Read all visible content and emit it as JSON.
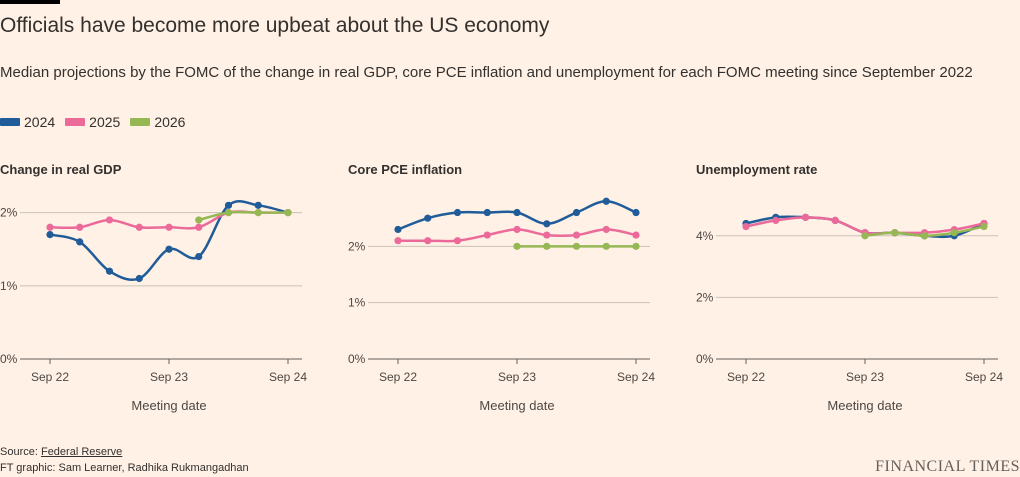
{
  "title": "Officials have become more upbeat about the US economy",
  "subtitle": "Median projections by the FOMC of the change in real GDP, core PCE inflation and unemployment for each FOMC meeting since September 2022",
  "legend": [
    {
      "label": "2024",
      "color": "#1f5c99"
    },
    {
      "label": "2025",
      "color": "#eb6a9a"
    },
    {
      "label": "2026",
      "color": "#96b854"
    }
  ],
  "footer": {
    "source_prefix": "Source: ",
    "source_link": "Federal Reserve",
    "credit": "FT graphic: Sam Learner, Radhika Rukmangadhan",
    "brand": "FINANCIAL TIMES"
  },
  "chart_data": [
    {
      "type": "line",
      "title": "Change in real GDP",
      "xlabel": "Meeting date",
      "x_ticks": [
        "Sep 22",
        "Sep 23",
        "Sep 24"
      ],
      "y_ticks": [
        "0%",
        "1%",
        "2%"
      ],
      "ylim": [
        0,
        2.2
      ],
      "x": [
        "2022-09",
        "2022-12",
        "2023-03",
        "2023-06",
        "2023-09",
        "2023-12",
        "2024-03",
        "2024-06",
        "2024-09"
      ],
      "series": [
        {
          "name": "2024",
          "color": "#1f5c99",
          "x": [
            "2022-09",
            "2022-12",
            "2023-03",
            "2023-06",
            "2023-09",
            "2023-12",
            "2024-03",
            "2024-06",
            "2024-09"
          ],
          "values": [
            1.7,
            1.6,
            1.2,
            1.1,
            1.5,
            1.4,
            2.1,
            2.1,
            2.0
          ]
        },
        {
          "name": "2025",
          "color": "#eb6a9a",
          "x": [
            "2022-09",
            "2022-12",
            "2023-03",
            "2023-06",
            "2023-09",
            "2023-12",
            "2024-03",
            "2024-06",
            "2024-09"
          ],
          "values": [
            1.8,
            1.8,
            1.9,
            1.8,
            1.8,
            1.8,
            2.0,
            2.0,
            2.0
          ]
        },
        {
          "name": "2026",
          "color": "#96b854",
          "x": [
            "2023-12",
            "2024-03",
            "2024-06",
            "2024-09"
          ],
          "values": [
            1.9,
            2.0,
            2.0,
            2.0
          ]
        }
      ]
    },
    {
      "type": "line",
      "title": "Core PCE inflation",
      "xlabel": "Meeting date",
      "x_ticks": [
        "Sep 22",
        "Sep 23",
        "Sep 24"
      ],
      "y_ticks": [
        "0%",
        "1%",
        "2%"
      ],
      "ylim": [
        0,
        3.0
      ],
      "x": [
        "2022-09",
        "2022-12",
        "2023-03",
        "2023-06",
        "2023-09",
        "2023-12",
        "2024-03",
        "2024-06",
        "2024-09"
      ],
      "series": [
        {
          "name": "2024",
          "color": "#1f5c99",
          "x": [
            "2022-09",
            "2022-12",
            "2023-03",
            "2023-06",
            "2023-09",
            "2023-12",
            "2024-03",
            "2024-06",
            "2024-09"
          ],
          "values": [
            2.3,
            2.5,
            2.6,
            2.6,
            2.6,
            2.4,
            2.6,
            2.8,
            2.6
          ]
        },
        {
          "name": "2025",
          "color": "#eb6a9a",
          "x": [
            "2022-09",
            "2022-12",
            "2023-03",
            "2023-06",
            "2023-09",
            "2023-12",
            "2024-03",
            "2024-06",
            "2024-09"
          ],
          "values": [
            2.1,
            2.1,
            2.1,
            2.2,
            2.3,
            2.2,
            2.2,
            2.3,
            2.2
          ]
        },
        {
          "name": "2026",
          "color": "#96b854",
          "x": [
            "2023-09",
            "2023-12",
            "2024-03",
            "2024-06",
            "2024-09"
          ],
          "values": [
            2.0,
            2.0,
            2.0,
            2.0,
            2.0
          ]
        }
      ]
    },
    {
      "type": "line",
      "title": "Unemployment rate",
      "xlabel": "Meeting date",
      "x_ticks": [
        "Sep 22",
        "Sep 23",
        "Sep 24"
      ],
      "y_ticks": [
        "0%",
        "2%",
        "4%"
      ],
      "ylim": [
        0,
        5.0
      ],
      "x": [
        "2022-09",
        "2022-12",
        "2023-03",
        "2023-06",
        "2023-09",
        "2023-12",
        "2024-03",
        "2024-06",
        "2024-09"
      ],
      "series": [
        {
          "name": "2024",
          "color": "#1f5c99",
          "x": [
            "2022-09",
            "2022-12",
            "2023-03",
            "2023-06",
            "2023-09",
            "2023-12",
            "2024-03",
            "2024-06",
            "2024-09"
          ],
          "values": [
            4.4,
            4.6,
            4.6,
            4.5,
            4.1,
            4.1,
            4.0,
            4.0,
            4.4
          ]
        },
        {
          "name": "2025",
          "color": "#eb6a9a",
          "x": [
            "2022-09",
            "2022-12",
            "2023-03",
            "2023-06",
            "2023-09",
            "2023-12",
            "2024-03",
            "2024-06",
            "2024-09"
          ],
          "values": [
            4.3,
            4.5,
            4.6,
            4.5,
            4.1,
            4.1,
            4.1,
            4.2,
            4.4
          ]
        },
        {
          "name": "2026",
          "color": "#96b854",
          "x": [
            "2023-09",
            "2023-12",
            "2024-03",
            "2024-06",
            "2024-09"
          ],
          "values": [
            4.0,
            4.1,
            4.0,
            4.1,
            4.3
          ]
        }
      ]
    }
  ]
}
